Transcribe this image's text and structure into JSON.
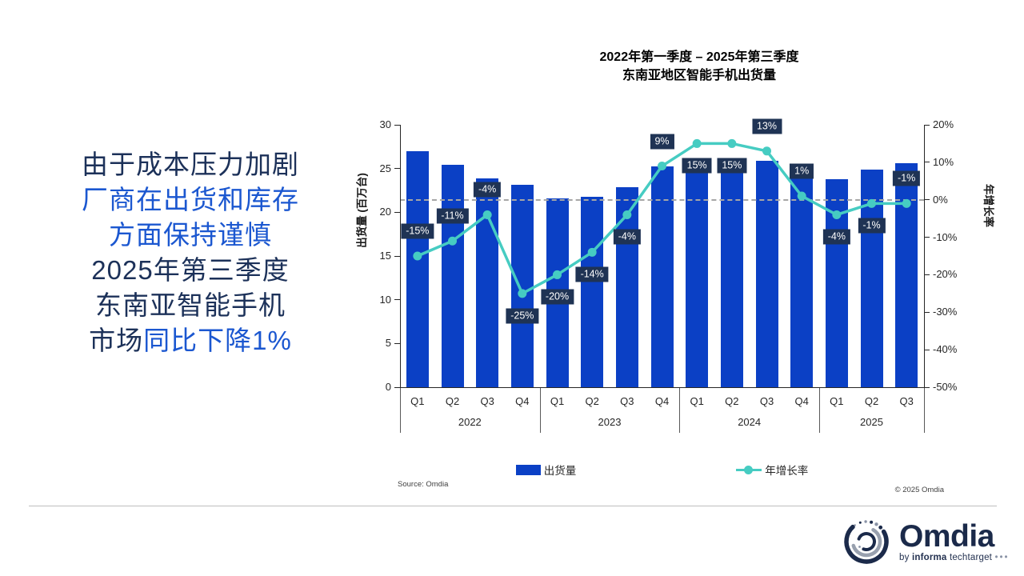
{
  "slide": {
    "headline": {
      "line1": "由于成本压力加剧",
      "line2": "厂商在出货和库存",
      "line3": "方面保持谨慎",
      "line4": "2025年第三季度",
      "line5": "东南亚智能手机",
      "line6_navy": "市场",
      "line6_blue": "同比下降1%"
    },
    "source": "Source: Omdia",
    "copyright": "© 2025 Omdia",
    "logo": {
      "name": "Omdia",
      "tagline_by": "by",
      "tagline_informa": "informa",
      "tagline_rest": "techtarget",
      "tagline_dots": "•••"
    }
  },
  "colors": {
    "bar_blue": "#0B40C5",
    "growth_teal": "#46CCC2",
    "label_badge_navy": "#1F3354",
    "headline_navy": "#1C3159",
    "headline_blue": "#1B57D0",
    "zero_dash_gray": "#A6A6A6",
    "axis_dark": "#262626",
    "logo_navy": "#1B2A4A"
  },
  "chart_data": {
    "type": "bar",
    "subtype": "bar-line-combo",
    "title_line1": "2022年第一季度 – 2025年第三季度",
    "title_line2": "东南亚地区智能手机出货量",
    "categories": [
      "Q1",
      "Q2",
      "Q3",
      "Q4",
      "Q1",
      "Q2",
      "Q3",
      "Q4",
      "Q1",
      "Q2",
      "Q3",
      "Q4",
      "Q1",
      "Q2",
      "Q3"
    ],
    "year_groups": [
      {
        "label": "2022",
        "count": 4
      },
      {
        "label": "2023",
        "count": 4
      },
      {
        "label": "2024",
        "count": 4
      },
      {
        "label": "2025",
        "count": 3
      }
    ],
    "series": [
      {
        "name": "出货量",
        "type": "bar",
        "axis": "left",
        "color": "#0B40C5",
        "values": [
          27.0,
          25.4,
          23.9,
          23.1,
          21.6,
          21.8,
          22.9,
          25.2,
          24.8,
          25.1,
          25.9,
          25.4,
          23.8,
          24.9,
          25.6
        ]
      },
      {
        "name": "年增长率",
        "type": "line",
        "axis": "right",
        "color": "#46CCC2",
        "values": [
          -15,
          -11,
          -4,
          -25,
          -20,
          -14,
          -4,
          9,
          15,
          15,
          13,
          1,
          -4,
          -1,
          -1
        ],
        "labels": [
          "-15%",
          "-11%",
          "-4%",
          "-25%",
          "-20%",
          "-14%",
          "-4%",
          "9%",
          "15%",
          "15%",
          "13%",
          "1%",
          "-4%",
          "-1%",
          "-1%"
        ],
        "label_positions": [
          "above",
          "above",
          "above",
          "below",
          "below",
          "below",
          "below",
          "above",
          "below",
          "below",
          "above",
          "above",
          "below",
          "below",
          "above"
        ]
      }
    ],
    "left_axis": {
      "title": "出货量 (百万台)",
      "min": 0,
      "max": 30,
      "ticks": [
        "30",
        "25",
        "20",
        "15",
        "10",
        "5",
        "0"
      ]
    },
    "right_axis": {
      "title": "年增长率",
      "min": -50,
      "max": 20,
      "ticks": [
        "20%",
        "10%",
        "0%",
        "-10%",
        "-20%",
        "-30%",
        "-40%",
        "-50%"
      ]
    },
    "zero_dashed_line": true,
    "legend": [
      {
        "label": "出货量",
        "marker": "bar"
      },
      {
        "label": "年增长率",
        "marker": "line-dot"
      }
    ]
  }
}
